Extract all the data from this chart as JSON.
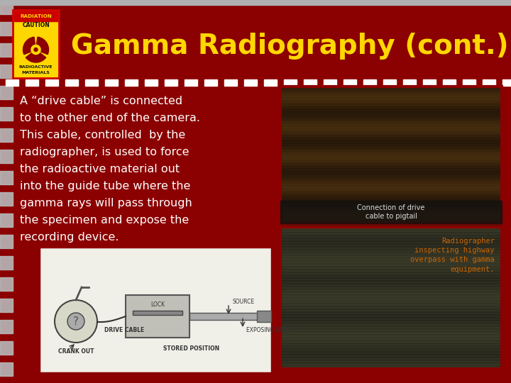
{
  "bg_color": "#8B0000",
  "title_text": "Gamma Radiography (cont.)",
  "title_color": "#FFD700",
  "title_fontsize": 28,
  "top_line_color": "#B0B0B0",
  "dashed_line_color": "#FFFFFF",
  "stripe_color": "#B8B8B8",
  "body_text_lines": [
    "A “drive cable” is connected",
    "to the other end of the camera.",
    "This cable, controlled  by the",
    "radiographer, is used to force",
    "the radioactive material out",
    "into the guide tube where the",
    "gamma rays will pass through",
    "the specimen and expose the",
    "recording device."
  ],
  "body_text_color": "#FFFFFF",
  "body_fontsize": 11.5,
  "sign_bg": "#FFD700",
  "sign_border": "#CC0000",
  "sign_text_bg": "#CC0000",
  "sign_symbol_color": "#8B0000",
  "photo1_bg": "#4a3a2a",
  "photo1_caption": "Connection of drive\ncable to pigtail",
  "photo1_caption_color": "#DDDDDD",
  "photo2_bg": "#5a5a4a",
  "photo2_caption": "Radiographer\ninspecting highway\noverpass with gamma\nequipment.",
  "photo2_caption_color": "#CC6600",
  "diagram_bg": "#F0F0E8",
  "diagram_border": "#8B0000",
  "frame_border": "#8B0000"
}
